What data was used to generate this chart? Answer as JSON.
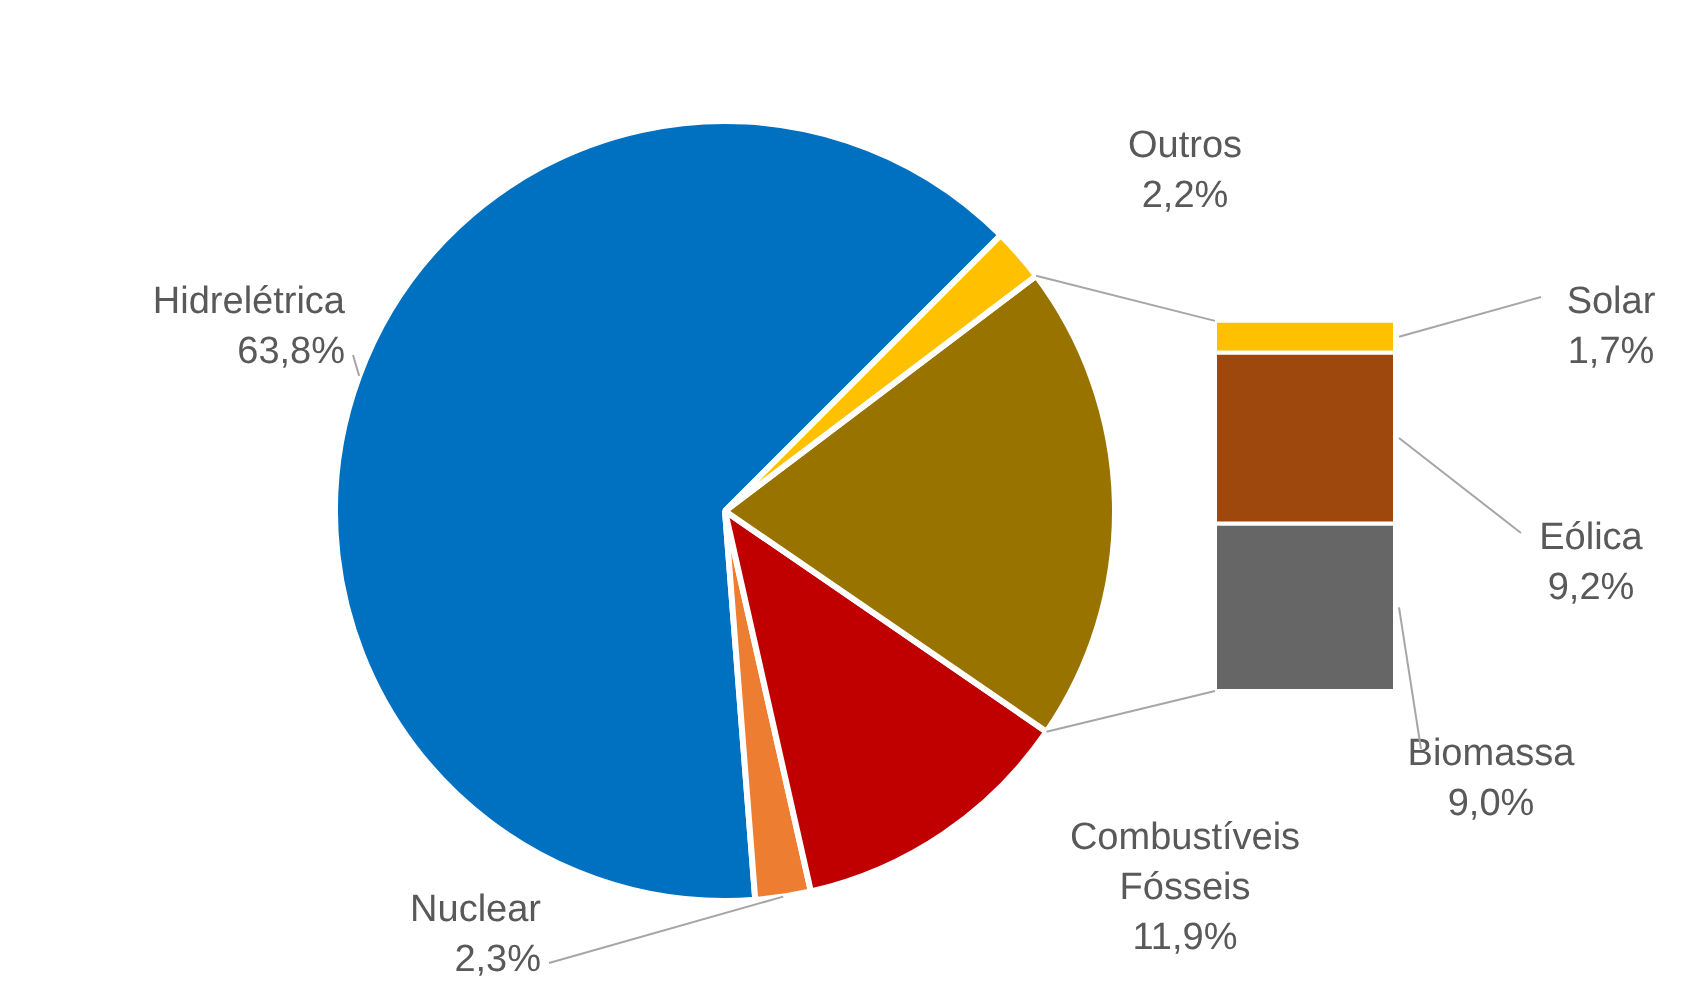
{
  "chart_data": [
    {
      "type": "pie",
      "categories": [
        "Hidrelétrica",
        "Nuclear",
        "Combustíveis Fósseis",
        null,
        "Outros"
      ],
      "values": [
        63.8,
        2.3,
        11.9,
        19.9,
        2.2
      ],
      "colors": [
        "#0070c0",
        "#ed7d31",
        "#c00000",
        "#997300",
        "#ffc000"
      ],
      "value_labels": [
        "63,8%",
        "2,3%",
        "11,9%",
        null,
        "2,2%"
      ]
    },
    {
      "type": "bar",
      "stacked": true,
      "categories": [
        null
      ],
      "series": [
        {
          "name": "Biomassa",
          "color": "#666666",
          "values": [
            9.0
          ],
          "value_labels": [
            "9,0%"
          ]
        },
        {
          "name": "Eólica",
          "color": "#9e480e",
          "values": [
            9.2
          ],
          "value_labels": [
            "9,2%"
          ]
        },
        {
          "name": "Solar",
          "color": "#ffc000",
          "values": [
            1.7
          ],
          "value_labels": [
            "1,7%"
          ]
        }
      ]
    }
  ]
}
